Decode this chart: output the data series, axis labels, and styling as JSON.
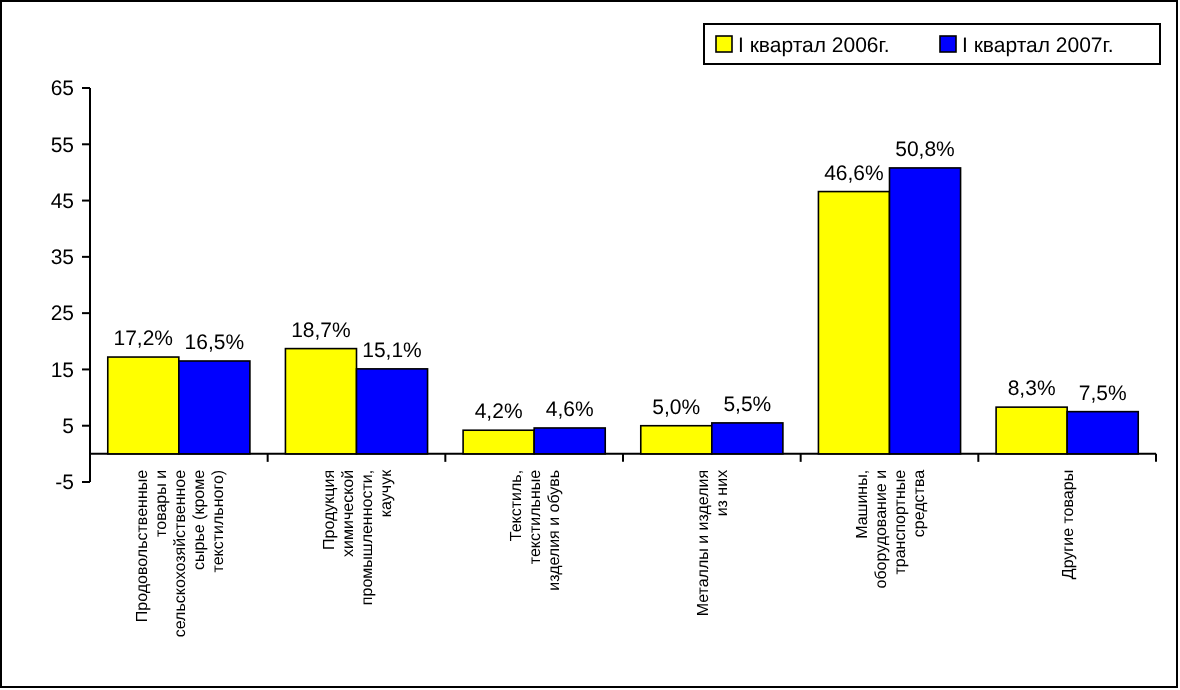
{
  "chart_data": {
    "type": "bar",
    "categories": [
      "Продовольственные товары и сельскохозяйственное сырье (кроме текстильного)",
      "Продукция химической промышленности, каучук",
      "Текстиль, текстильные изделия и обувь",
      "Металлы и изделия из них",
      "Машины, оборудование и транспортные средства",
      "Другие товары"
    ],
    "series": [
      {
        "name": "I квартал 2006г.",
        "color": "#ffff00",
        "values": [
          17.2,
          18.7,
          4.2,
          5.0,
          46.6,
          8.3
        ],
        "value_labels": [
          "17,2%",
          "18,7%",
          "4,2%",
          "5,0%",
          "46,6%",
          "8,3%"
        ]
      },
      {
        "name": "I квартал 2007г.",
        "color": "#0000ff",
        "values": [
          16.5,
          15.1,
          4.6,
          5.5,
          50.8,
          7.5
        ],
        "value_labels": [
          "16,5%",
          "15,1%",
          "4,6%",
          "5,5%",
          "50,8%",
          "7,5%"
        ]
      }
    ],
    "ylim": [
      -5,
      65
    ],
    "yticks": [
      -5,
      5,
      15,
      25,
      35,
      45,
      55,
      65
    ],
    "grid": false,
    "legend": "top right"
  }
}
